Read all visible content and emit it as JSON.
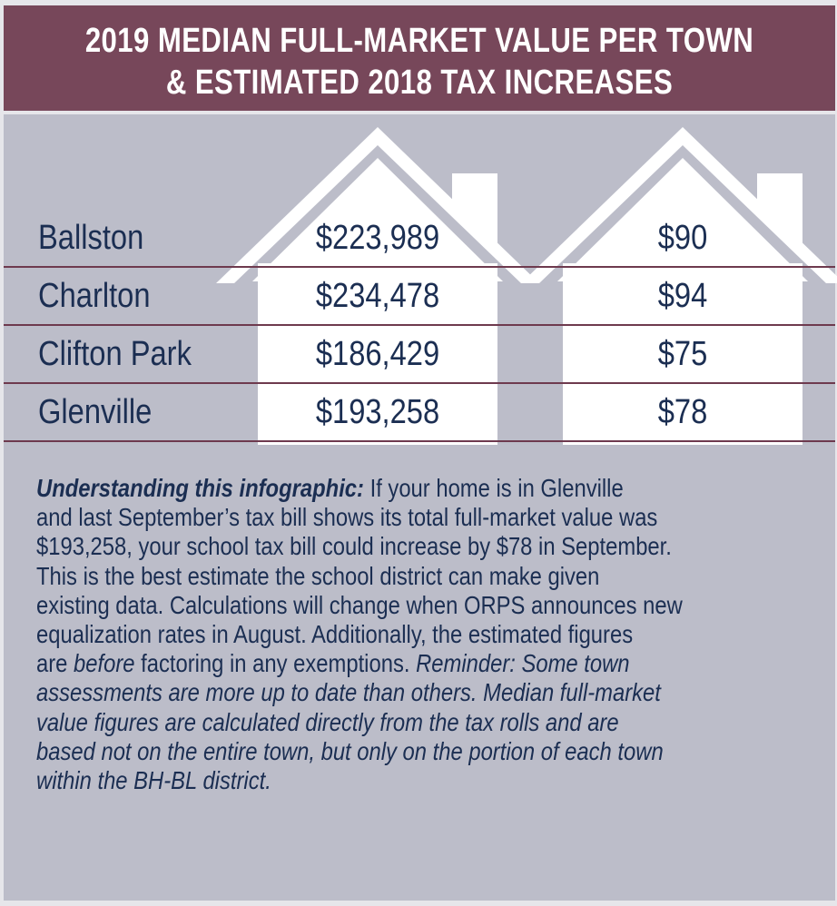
{
  "title": {
    "line1": "2019 MEDIAN FULL-MARKET VALUE PER TOWN",
    "line2": "& ESTIMATED 2018 TAX INCREASES"
  },
  "rows": [
    {
      "town": "Ballston",
      "value": "$223,989",
      "increase": "$90"
    },
    {
      "town": "Charlton",
      "value": "$234,478",
      "increase": "$94"
    },
    {
      "town": "Clifton Park",
      "value": "$186,429",
      "increase": "$75"
    },
    {
      "town": "Glenville",
      "value": "$193,258",
      "increase": "$78"
    }
  ],
  "explanation": {
    "lines": [
      [
        {
          "s": "b",
          "t": "Understanding this infographic:"
        },
        {
          "s": "n",
          "t": " If your home is in Glenville"
        }
      ],
      [
        {
          "s": "n",
          "t": "and last September’s tax bill shows its total full-market value was"
        }
      ],
      [
        {
          "s": "n",
          "t": "$193,258, your school tax bill could increase by $78 in September."
        }
      ],
      [
        {
          "s": "n",
          "t": "This is the best estimate the school district can make given"
        }
      ],
      [
        {
          "s": "n",
          "t": "existing data. Calculations will change when ORPS announces new"
        }
      ],
      [
        {
          "s": "n",
          "t": "equalization rates in August. Additionally, the estimated figures"
        }
      ],
      [
        {
          "s": "n",
          "t": "are "
        },
        {
          "s": "i",
          "t": "before"
        },
        {
          "s": "n",
          "t": " factoring in any exemptions.  "
        },
        {
          "s": "i",
          "t": "Reminder: Some town"
        }
      ],
      [
        {
          "s": "i",
          "t": "assessments are more up to date than others. Median full-market"
        }
      ],
      [
        {
          "s": "i",
          "t": "value figures are calculated directly from the tax rolls and are"
        }
      ],
      [
        {
          "s": "i",
          "t": "based not on the entire town, but only on the portion of each town"
        }
      ],
      [
        {
          "s": "i",
          "t": "within the BH-BL district."
        }
      ]
    ]
  },
  "colors": {
    "header": "#77475a",
    "panel": "#bcbdc9",
    "text": "#1b2e52",
    "rule": "#6e3a4e"
  }
}
